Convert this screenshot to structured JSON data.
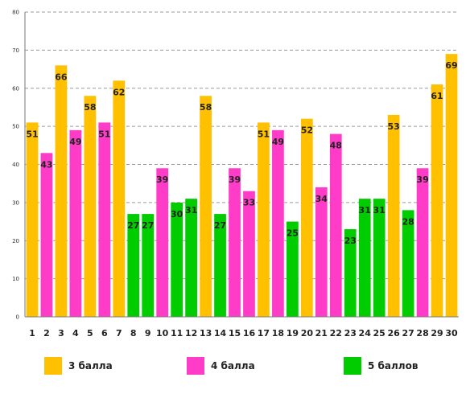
{
  "chart_data": {
    "type": "bar",
    "categories": [
      "1",
      "2",
      "3",
      "4",
      "5",
      "6",
      "7",
      "8",
      "9",
      "10",
      "11",
      "12",
      "13",
      "14",
      "15",
      "16",
      "17",
      "18",
      "19",
      "20",
      "21",
      "22",
      "23",
      "24",
      "25",
      "26",
      "27",
      "28",
      "29",
      "30"
    ],
    "values": [
      51,
      43,
      66,
      49,
      58,
      51,
      62,
      27,
      27,
      39,
      30,
      31,
      58,
      27,
      39,
      33,
      51,
      49,
      25,
      52,
      34,
      48,
      23,
      31,
      31,
      53,
      28,
      39,
      61,
      69
    ],
    "groups": [
      "3",
      "4",
      "3",
      "4",
      "3",
      "4",
      "3",
      "5",
      "5",
      "4",
      "5",
      "5",
      "3",
      "5",
      "4",
      "4",
      "3",
      "4",
      "5",
      "3",
      "4",
      "4",
      "5",
      "5",
      "5",
      "3",
      "5",
      "4",
      "3",
      "3"
    ],
    "y_ticks": [
      "0",
      "10",
      "20",
      "30",
      "40",
      "50",
      "60",
      "70",
      "80"
    ],
    "ylim": [
      0,
      80
    ],
    "grid": true,
    "legend_position": "bottom",
    "legend": [
      {
        "key": "3",
        "label": "3 балла",
        "color": "#FFC000"
      },
      {
        "key": "4",
        "label": "4 балла",
        "color": "#FF3CC8"
      },
      {
        "key": "5",
        "label": "5 баллов",
        "color": "#00CC00"
      }
    ]
  }
}
